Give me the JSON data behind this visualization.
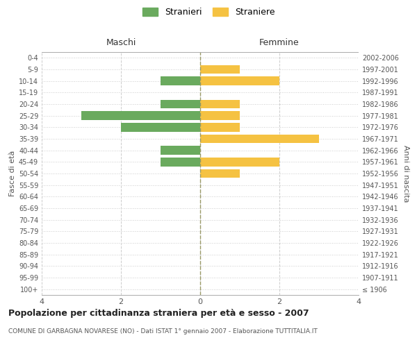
{
  "age_groups": [
    "100+",
    "95-99",
    "90-94",
    "85-89",
    "80-84",
    "75-79",
    "70-74",
    "65-69",
    "60-64",
    "55-59",
    "50-54",
    "45-49",
    "40-44",
    "35-39",
    "30-34",
    "25-29",
    "20-24",
    "15-19",
    "10-14",
    "5-9",
    "0-4"
  ],
  "birth_years": [
    "≤ 1906",
    "1907-1911",
    "1912-1916",
    "1917-1921",
    "1922-1926",
    "1927-1931",
    "1932-1936",
    "1937-1941",
    "1942-1946",
    "1947-1951",
    "1952-1956",
    "1957-1961",
    "1962-1966",
    "1967-1971",
    "1972-1976",
    "1977-1981",
    "1982-1986",
    "1987-1991",
    "1992-1996",
    "1997-2001",
    "2002-2006"
  ],
  "maschi": [
    0,
    0,
    0,
    0,
    0,
    0,
    0,
    0,
    0,
    0,
    0,
    1,
    1,
    0,
    2,
    3,
    1,
    0,
    1,
    0,
    0
  ],
  "femmine": [
    0,
    0,
    0,
    0,
    0,
    0,
    0,
    0,
    0,
    0,
    1,
    2,
    0,
    3,
    1,
    1,
    1,
    0,
    2,
    1,
    0
  ],
  "color_maschi": "#6aaa5e",
  "color_femmine": "#f5c242",
  "background_color": "#ffffff",
  "grid_color": "#cccccc",
  "title": "Popolazione per cittadinanza straniera per età e sesso - 2007",
  "subtitle": "COMUNE DI GARBAGNA NOVARESE (NO) - Dati ISTAT 1° gennaio 2007 - Elaborazione TUTTITALIA.IT",
  "label_maschi": "Maschi",
  "label_femmine": "Femmine",
  "ylabel_left": "Fasce di età",
  "ylabel_right": "Anni di nascita",
  "legend_maschi": "Stranieri",
  "legend_femmine": "Straniere",
  "xlim": 4,
  "bar_height": 0.75
}
